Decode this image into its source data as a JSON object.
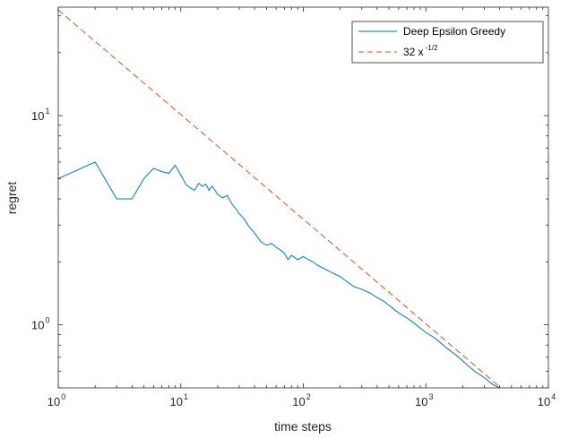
{
  "chart_data": {
    "type": "line",
    "xscale": "log",
    "yscale": "log",
    "xlim": [
      1,
      10000
    ],
    "ylim": [
      0.5,
      33
    ],
    "xlabel": "time steps",
    "ylabel": "regret",
    "grid": false,
    "legend_position": "top-right",
    "x_ticks": [
      {
        "value": 1,
        "base": "10",
        "exp": "0"
      },
      {
        "value": 10,
        "base": "10",
        "exp": "1"
      },
      {
        "value": 100,
        "base": "10",
        "exp": "2"
      },
      {
        "value": 1000,
        "base": "10",
        "exp": "3"
      },
      {
        "value": 10000,
        "base": "10",
        "exp": "4"
      }
    ],
    "y_ticks": [
      {
        "value": 1,
        "base": "10",
        "exp": "0"
      },
      {
        "value": 10,
        "base": "10",
        "exp": "1"
      }
    ],
    "series": [
      {
        "name": "Deep Epsilon Greedy",
        "color": "#0072BD",
        "style": "solid",
        "x": [
          1,
          2,
          3,
          4,
          5,
          6,
          7,
          8,
          9,
          10,
          11,
          12,
          13,
          14,
          15,
          16,
          17,
          18,
          19,
          20,
          22,
          24,
          26,
          28,
          30,
          33,
          36,
          40,
          45,
          50,
          55,
          60,
          65,
          70,
          75,
          80,
          85,
          90,
          100,
          110,
          120,
          130,
          150,
          170,
          200,
          230,
          260,
          300,
          350,
          400,
          450,
          500,
          600,
          700,
          800,
          1000,
          1200,
          1500,
          1800,
          2200,
          2600,
          3000,
          3500,
          4000
        ],
        "y": [
          5.0,
          6.0,
          4.0,
          4.0,
          5.0,
          5.6,
          5.4,
          5.3,
          5.8,
          5.2,
          4.7,
          4.5,
          4.4,
          4.75,
          4.6,
          4.7,
          4.4,
          4.6,
          4.4,
          4.2,
          4.05,
          4.15,
          3.8,
          3.6,
          3.4,
          3.2,
          2.95,
          2.75,
          2.5,
          2.4,
          2.45,
          2.35,
          2.28,
          2.2,
          2.05,
          2.15,
          2.1,
          2.05,
          2.12,
          2.05,
          2.0,
          1.93,
          1.85,
          1.78,
          1.7,
          1.6,
          1.52,
          1.48,
          1.42,
          1.35,
          1.3,
          1.24,
          1.14,
          1.08,
          1.02,
          0.92,
          0.86,
          0.77,
          0.71,
          0.64,
          0.59,
          0.56,
          0.52,
          0.5
        ]
      },
      {
        "name": "32 x -1/2",
        "legend_base": "32 x",
        "legend_exp": "-1/2",
        "color": "#D95319",
        "style": "dashed",
        "formula_coefficient": 32,
        "formula_exponent": -0.5,
        "x": [
          1,
          10,
          100,
          1000,
          4000
        ],
        "y": [
          32,
          10.12,
          3.2,
          1.012,
          0.506
        ]
      }
    ]
  }
}
